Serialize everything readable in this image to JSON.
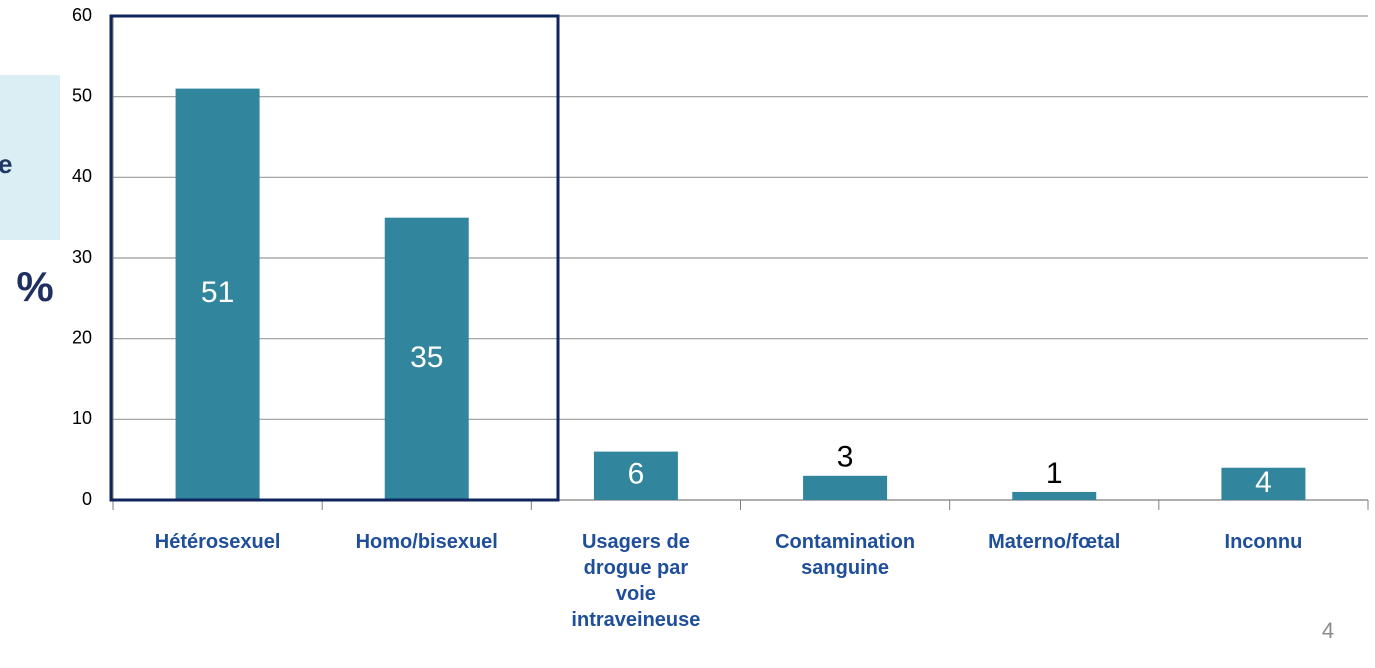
{
  "chart_data": {
    "type": "bar",
    "categories": [
      "Hétérosexuel",
      "Homo/bisexuel",
      "Usagers de drogue par voie intraveineuse",
      "Contamination sanguine",
      "Materno/fœtal",
      "Inconnu"
    ],
    "values": [
      51,
      35,
      6,
      3,
      1,
      4
    ],
    "color": "#31859c",
    "ylim": [
      0,
      60
    ],
    "yticks": [
      0,
      10,
      20,
      30,
      40,
      50,
      60
    ],
    "grid": true,
    "y_axis_label": "%"
  },
  "side_box_text": "e",
  "page_number": "4"
}
